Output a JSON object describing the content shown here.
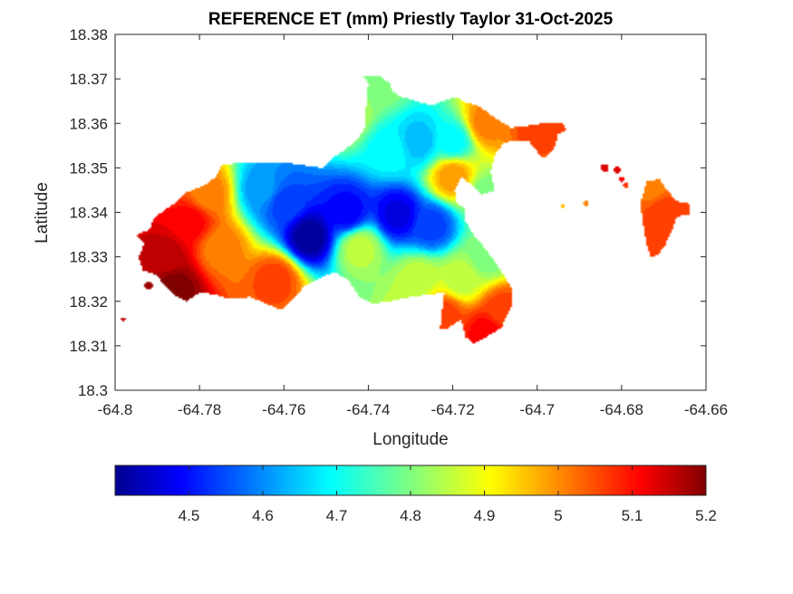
{
  "chart_data": {
    "type": "heatmap",
    "title": "REFERENCE ET (mm) Priestly Taylor 31-Oct-2025",
    "xlabel": "Longitude",
    "ylabel": "Latitude",
    "xlim": [
      -64.8,
      -64.66
    ],
    "ylim": [
      18.3,
      18.38
    ],
    "xticks": [
      -64.8,
      -64.78,
      -64.76,
      -64.74,
      -64.72,
      -64.7,
      -64.68,
      -64.66
    ],
    "xtick_labels": [
      "-64.8",
      "-64.78",
      "-64.76",
      "-64.74",
      "-64.72",
      "-64.7",
      "-64.68",
      "-64.66"
    ],
    "yticks": [
      18.3,
      18.31,
      18.32,
      18.33,
      18.34,
      18.35,
      18.36,
      18.37,
      18.38
    ],
    "ytick_labels": [
      "18.3",
      "18.31",
      "18.32",
      "18.33",
      "18.34",
      "18.35",
      "18.36",
      "18.37",
      "18.38"
    ],
    "colormap": "jet",
    "colorbar": {
      "orientation": "horizontal",
      "location": "below",
      "range": [
        4.4,
        5.2
      ],
      "ticks": [
        4.5,
        4.6,
        4.7,
        4.8,
        4.9,
        5.0,
        5.1,
        5.2
      ],
      "tick_labels": [
        "4.5",
        "4.6",
        "4.7",
        "4.8",
        "4.9",
        "5",
        "5.1",
        "5.2"
      ]
    },
    "grid": false,
    "field": {
      "description_points": [
        {
          "lon": -64.754,
          "lat": 18.3345,
          "value": 4.42
        },
        {
          "lon": -64.745,
          "lat": 18.34,
          "value": 4.5
        },
        {
          "lon": -64.733,
          "lat": 18.3395,
          "value": 4.48
        },
        {
          "lon": -64.725,
          "lat": 18.337,
          "value": 4.55
        },
        {
          "lon": -64.76,
          "lat": 18.342,
          "value": 4.55
        },
        {
          "lon": -64.765,
          "lat": 18.345,
          "value": 4.62
        },
        {
          "lon": -64.735,
          "lat": 18.354,
          "value": 4.7
        },
        {
          "lon": -64.728,
          "lat": 18.356,
          "value": 4.65
        },
        {
          "lon": -64.72,
          "lat": 18.356,
          "value": 4.7
        },
        {
          "lon": -64.745,
          "lat": 18.362,
          "value": 4.85
        },
        {
          "lon": -64.737,
          "lat": 18.369,
          "value": 4.8
        },
        {
          "lon": -64.742,
          "lat": 18.332,
          "value": 4.85
        },
        {
          "lon": -64.728,
          "lat": 18.325,
          "value": 4.85
        },
        {
          "lon": -64.718,
          "lat": 18.325,
          "value": 4.85
        },
        {
          "lon": -64.712,
          "lat": 18.33,
          "value": 4.8
        },
        {
          "lon": -64.712,
          "lat": 18.344,
          "value": 4.8
        },
        {
          "lon": -64.712,
          "lat": 18.36,
          "value": 5.0
        },
        {
          "lon": -64.72,
          "lat": 18.348,
          "value": 4.98
        },
        {
          "lon": -64.778,
          "lat": 18.344,
          "value": 5.0
        },
        {
          "lon": -64.775,
          "lat": 18.332,
          "value": 5.0
        },
        {
          "lon": -64.762,
          "lat": 18.325,
          "value": 5.05
        },
        {
          "lon": -64.782,
          "lat": 18.338,
          "value": 5.1
        },
        {
          "lon": -64.788,
          "lat": 18.33,
          "value": 5.15
        },
        {
          "lon": -64.786,
          "lat": 18.323,
          "value": 5.2
        },
        {
          "lon": -64.712,
          "lat": 18.313,
          "value": 5.1
        },
        {
          "lon": -64.722,
          "lat": 18.317,
          "value": 5.05
        },
        {
          "lon": -64.708,
          "lat": 18.318,
          "value": 5.05
        },
        {
          "lon": -64.7,
          "lat": 18.358,
          "value": 5.05
        },
        {
          "lon": -64.69,
          "lat": 18.358,
          "value": 5.05
        },
        {
          "lon": -64.684,
          "lat": 18.349,
          "value": 5.12
        },
        {
          "lon": -64.67,
          "lat": 18.34,
          "value": 5.05
        },
        {
          "lon": -64.673,
          "lat": 18.346,
          "value": 5.0
        },
        {
          "lon": -64.694,
          "lat": 18.345,
          "value": 4.95
        }
      ]
    }
  }
}
